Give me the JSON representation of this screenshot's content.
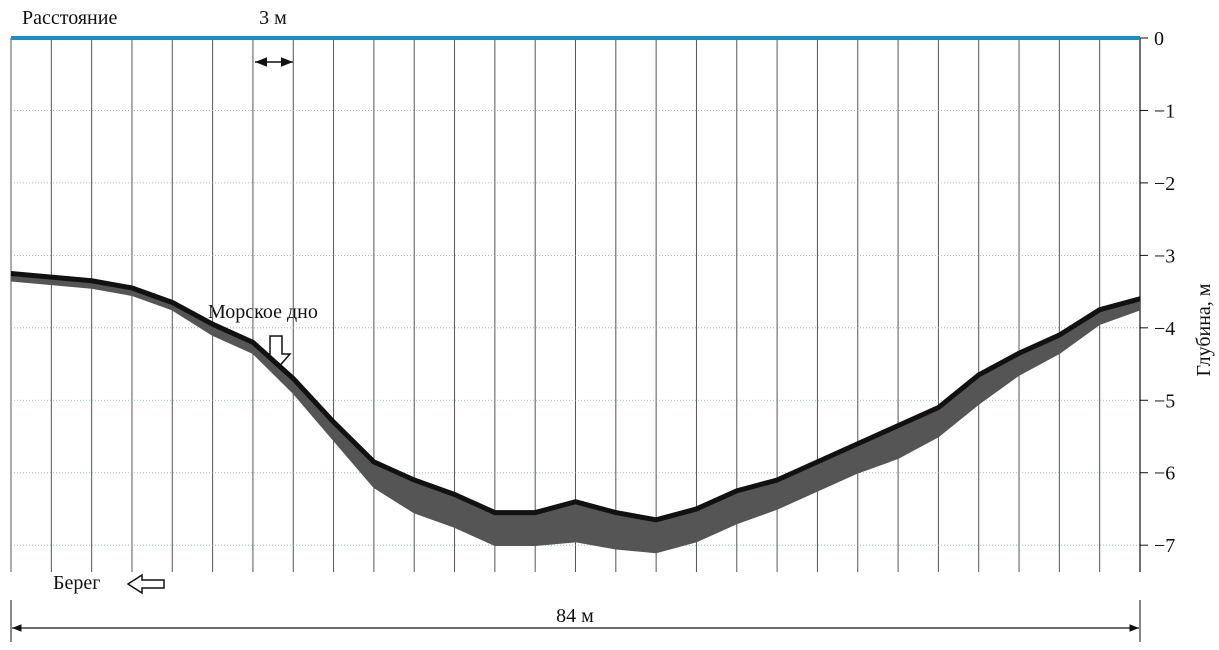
{
  "chart_data": {
    "type": "band",
    "x_label": "Расстояние",
    "scale_label": "3 м",
    "y_label": "Глубина, м",
    "annotation": "Морское дно",
    "shore_label": "Берег",
    "width_label": "84 м",
    "x": [
      0,
      3,
      6,
      9,
      12,
      15,
      18,
      21,
      24,
      27,
      30,
      33,
      36,
      39,
      42,
      45,
      48,
      51,
      54,
      57,
      60,
      63,
      66,
      69,
      72,
      75,
      78,
      81,
      84
    ],
    "series": [
      {
        "color": "#111111",
        "values": [
          -3.25,
          -3.3,
          -3.35,
          -3.45,
          -3.65,
          -3.95,
          -4.2,
          -4.7,
          -5.3,
          -5.85,
          -6.1,
          -6.3,
          -6.55,
          -6.55,
          -6.4,
          -6.55,
          -6.65,
          -6.5,
          -6.25,
          -6.1,
          -5.85,
          -5.6,
          -5.35,
          -5.1,
          -4.65,
          -4.35,
          -4.1,
          -3.75,
          -3.6
        ]
      },
      {
        "color": "#555555",
        "values": [
          -3.35,
          -3.4,
          -3.45,
          -3.55,
          -3.75,
          -4.1,
          -4.35,
          -4.9,
          -5.55,
          -6.2,
          -6.55,
          -6.75,
          -7.0,
          -7.0,
          -6.95,
          -7.05,
          -7.1,
          -6.95,
          -6.7,
          -6.5,
          -6.25,
          -6.0,
          -5.8,
          -5.5,
          -5.05,
          -4.65,
          -4.35,
          -3.95,
          -3.75
        ]
      }
    ],
    "xlim": [
      0,
      84
    ],
    "xticks": [
      0,
      3,
      6,
      9,
      12,
      15,
      18,
      21,
      24,
      27,
      30,
      33,
      36,
      39,
      42,
      45,
      48,
      51,
      54,
      57,
      60,
      63,
      66,
      69,
      72,
      75,
      78,
      81,
      84
    ],
    "ylim": [
      -7.37,
      0
    ],
    "yticks": [
      0,
      {
        "value": -1,
        "label": "−1"
      },
      {
        "value": -2,
        "label": "−2"
      },
      {
        "value": -3,
        "label": "−3"
      },
      {
        "value": -4,
        "label": "−4"
      },
      {
        "value": -5,
        "label": "−5"
      },
      {
        "value": -6,
        "label": "−6"
      },
      {
        "value": -7,
        "label": "−7"
      }
    ],
    "surface_color": "#1a8fc0",
    "grid": true
  }
}
